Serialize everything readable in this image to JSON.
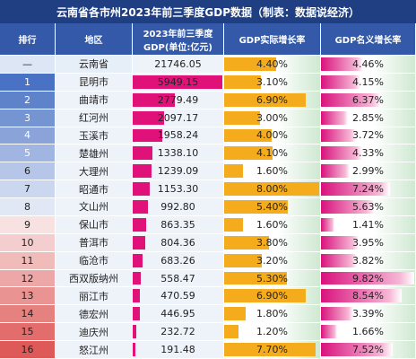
{
  "title": "云南省各市州2023年前三季度GDP数据（制表：数据说经济）",
  "table": {
    "header": [
      "排行",
      "地区",
      [
        "2023年前三季度",
        "GDP(单位:亿元)"
      ],
      "GDP实际增长率",
      "GDP名义增长率"
    ],
    "rows": [
      [
        "—",
        "云南省",
        "21746.05",
        "4.40%",
        "4.46%"
      ],
      [
        "1",
        "昆明市",
        "5949.15",
        "3.10%",
        "4.15%"
      ],
      [
        "2",
        "曲靖市",
        "2779.49",
        "6.90%",
        "6.37%"
      ],
      [
        "3",
        "红河州",
        "2097.17",
        "3.00%",
        "2.85%"
      ],
      [
        "4",
        "玉溪市",
        "1958.24",
        "4.00%",
        "3.72%"
      ],
      [
        "5",
        "楚雄州",
        "1338.10",
        "4.10%",
        "4.33%"
      ],
      [
        "6",
        "大理州",
        "1239.09",
        "1.60%",
        "2.99%"
      ],
      [
        "7",
        "昭通市",
        "1153.30",
        "8.00%",
        "7.24%"
      ],
      [
        "8",
        "文山州",
        "992.80",
        "5.40%",
        "5.63%"
      ],
      [
        "9",
        "保山市",
        "863.35",
        "1.60%",
        "1.41%"
      ],
      [
        "10",
        "普洱市",
        "804.36",
        "3.80%",
        "3.95%"
      ],
      [
        "11",
        "临沧市",
        "683.26",
        "3.20%",
        "3.82%"
      ],
      [
        "12",
        "西双版纳州",
        "558.47",
        "5.30%",
        "9.82%"
      ],
      [
        "13",
        "丽江市",
        "470.59",
        "6.90%",
        "8.54%"
      ],
      [
        "14",
        "德宏州",
        "446.95",
        "1.80%",
        "3.39%"
      ],
      [
        "15",
        "迪庆州",
        "232.72",
        "1.20%",
        "1.66%"
      ],
      [
        "16",
        "怒江州",
        "191.48",
        "7.70%",
        "7.52%"
      ]
    ]
  }
}
